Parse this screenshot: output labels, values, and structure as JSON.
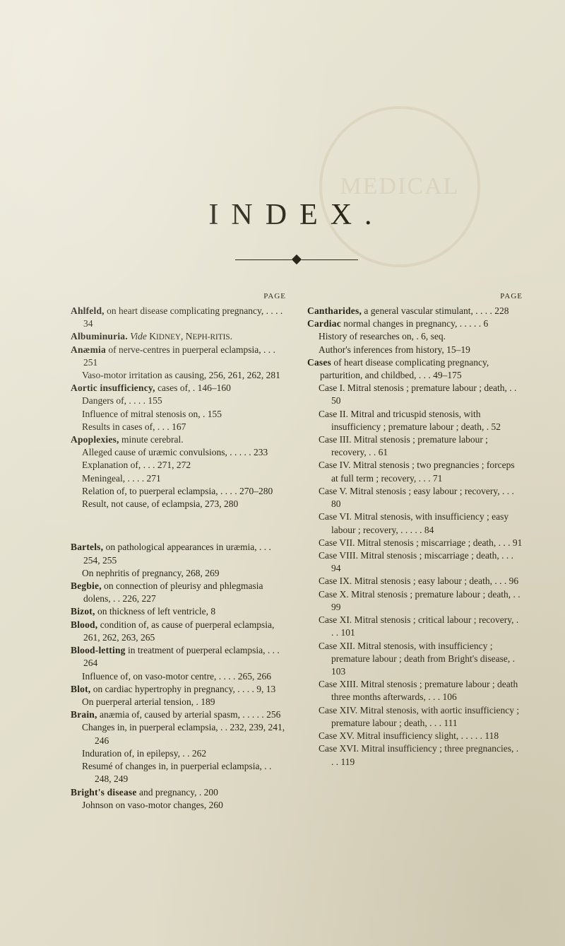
{
  "watermark": "MEDICAL",
  "title": "INDEX.",
  "pageLabelLeft": "PAGE",
  "pageLabelRight": "PAGE",
  "left": [
    {
      "cls": "entry",
      "html": "<b class='head'>Ahlfeld,</b> on heart disease complicating pregnancy, . . . . 34"
    },
    {
      "cls": "entry",
      "html": "<b class='head'>Albuminuria.</b> <i>Vide</i> K<small>IDNEY</small>, N<small>EPH-RITIS</small>."
    },
    {
      "cls": "entry",
      "html": "<b class='head'>Anæmia</b> of nerve-centres in puerperal eclampsia, . . . 251"
    },
    {
      "cls": "sub",
      "html": "Vaso-motor irritation as causing, 256, 261, 262, 281"
    },
    {
      "cls": "entry",
      "html": "<b class='head'>Aortic insufficiency,</b> cases of, . 146–160"
    },
    {
      "cls": "sub",
      "html": "Dangers of, . . . . 155"
    },
    {
      "cls": "sub",
      "html": "Influence of mitral stenosis on, . 155"
    },
    {
      "cls": "sub",
      "html": "Results in cases of, . . . 167"
    },
    {
      "cls": "entry",
      "html": "<b class='head'>Apoplexies,</b> minute cerebral."
    },
    {
      "cls": "sub",
      "html": "Alleged cause of uræmic convulsions, . . . . . 233"
    },
    {
      "cls": "sub",
      "html": "Explanation of, . . . 271, 272"
    },
    {
      "cls": "sub",
      "html": "Meningeal, . . . . 271"
    },
    {
      "cls": "sub",
      "html": "Relation of, to puerperal eclampsia, . . . . 270–280"
    },
    {
      "cls": "sub",
      "html": "Result, not cause, of eclampsia, 273, 280"
    },
    {
      "cls": "gap",
      "html": ""
    },
    {
      "cls": "entry",
      "html": "<b class='head'>Bartels,</b> on pathological appearances in uræmia, . . . 254, 255"
    },
    {
      "cls": "sub",
      "html": "On nephritis of pregnancy, 268, 269"
    },
    {
      "cls": "entry",
      "html": "<b class='head'>Begbie,</b> on connection of pleurisy and phlegmasia dolens, . . 226, 227"
    },
    {
      "cls": "entry",
      "html": "<b class='head'>Bizot,</b> on thickness of left ventricle, 8"
    },
    {
      "cls": "entry",
      "html": "<b class='head'>Blood,</b> condition of, as cause of puerperal eclampsia, 261, 262, 263, 265"
    },
    {
      "cls": "entry",
      "html": "<b class='head'>Blood-letting</b> in treatment of puerperal eclampsia, . . . 264"
    },
    {
      "cls": "sub",
      "html": "Influence of, on vaso-motor centre, . . . . 265, 266"
    },
    {
      "cls": "entry",
      "html": "<b class='head'>Blot,</b> on cardiac hypertrophy in pregnancy, . . . . 9, 13"
    },
    {
      "cls": "sub",
      "html": "On puerperal arterial tension, . 189"
    },
    {
      "cls": "entry",
      "html": "<b class='head'>Brain,</b> anæmia of, caused by arterial spasm, . . . . . 256"
    },
    {
      "cls": "sub",
      "html": "Changes in, in puerperal eclampsia, . . 232, 239, 241, 246"
    },
    {
      "cls": "sub",
      "html": "Induration of, in epilepsy, . . 262"
    },
    {
      "cls": "sub",
      "html": "Resumé of changes in, in puerperial eclampsia, . . 248, 249"
    },
    {
      "cls": "entry",
      "html": "<b class='head'>Bright's disease</b> and pregnancy, . 200"
    },
    {
      "cls": "sub",
      "html": "Johnson on vaso-motor changes, 260"
    }
  ],
  "right": [
    {
      "cls": "entry",
      "html": "<b class='head'>Cantharides,</b> a general vascular stimulant, . . . . 228"
    },
    {
      "cls": "entry",
      "html": "<b class='head'>Cardiac</b> normal changes in pregnancy, . . . . . 6"
    },
    {
      "cls": "sub",
      "html": "History of researches on, . 6, seq."
    },
    {
      "cls": "sub",
      "html": "Author's inferences from history, 15–19"
    },
    {
      "cls": "entry",
      "html": "<b class='head'>Cases</b> of heart disease complicating pregnancy, parturition, and childbed, . . . 49–175"
    },
    {
      "cls": "sub",
      "html": "Case I. Mitral stenosis ; premature labour ; death, . . 50"
    },
    {
      "cls": "sub",
      "html": "Case II. Mitral and tricuspid stenosis, with insufficiency ; premature labour ; death, . 52"
    },
    {
      "cls": "sub",
      "html": "Case III. Mitral stenosis ; premature labour ; recovery, . . 61"
    },
    {
      "cls": "sub",
      "html": "Case IV. Mitral stenosis ; two pregnancies ; forceps at full term ; recovery, . . . 71"
    },
    {
      "cls": "sub",
      "html": "Case V. Mitral stenosis ; easy labour ; recovery, . . . 80"
    },
    {
      "cls": "sub",
      "html": "Case VI. Mitral stenosis, with insufficiency ; easy labour ; recovery, . . . . . 84"
    },
    {
      "cls": "sub",
      "html": "Case VII. Mitral stenosis ; miscarriage ; death, . . . 91"
    },
    {
      "cls": "sub",
      "html": "Case VIII. Mitral stenosis ; miscarriage ; death, . . . 94"
    },
    {
      "cls": "sub",
      "html": "Case IX. Mitral stenosis ; easy labour ; death, . . . 96"
    },
    {
      "cls": "sub",
      "html": "Case X. Mitral stenosis ; premature labour ; death, . . 99"
    },
    {
      "cls": "sub",
      "html": "Case XI. Mitral stenosis ; critical labour ; recovery, . . . 101"
    },
    {
      "cls": "sub",
      "html": "Case XII. Mitral stenosis, with insufficiency ; premature labour ; death from Bright's disease, . 103"
    },
    {
      "cls": "sub",
      "html": "Case XIII. Mitral stenosis ; premature labour ; death three months afterwards, . . . 106"
    },
    {
      "cls": "sub",
      "html": "Case XIV. Mitral stenosis, with aortic insufficiency ; premature labour ; death, . . . 111"
    },
    {
      "cls": "sub",
      "html": "Case XV. Mitral insufficiency slight, . . . . . 118"
    },
    {
      "cls": "sub",
      "html": "Case XVI. Mitral insufficiency ; three pregnancies, . . . 119"
    }
  ]
}
